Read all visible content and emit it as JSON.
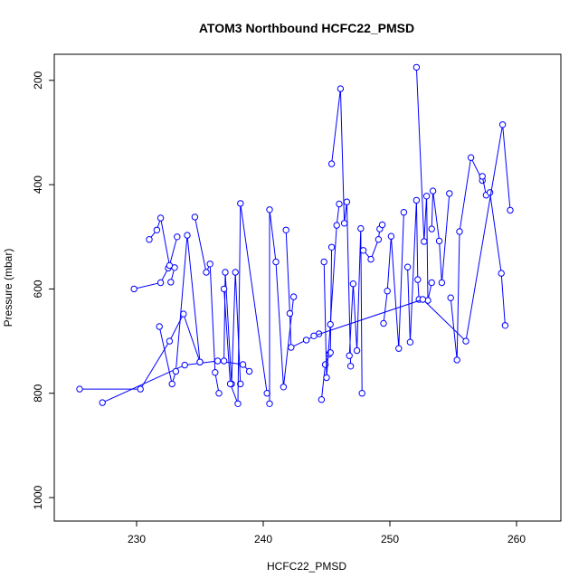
{
  "chart_data": {
    "type": "scatter",
    "title": "ATOM3 Northbound HCFC22_PMSD",
    "xlabel": "HCFC22_PMSD",
    "ylabel": "Pressure (mbar)",
    "xlim": [
      223.5,
      263.5
    ],
    "ylim": [
      1045,
      150
    ],
    "y_reversed": true,
    "x_ticks": [
      230,
      240,
      250,
      260
    ],
    "y_ticks": [
      200,
      400,
      600,
      800,
      1000
    ],
    "grid": false,
    "legend": "none",
    "colors": {
      "series": "#0000ff",
      "axis": "#000000"
    },
    "series": [
      {
        "x": [
          225.5,
          230.3,
          232.6,
          233.7,
          235.0
        ],
        "y": [
          792,
          792,
          700,
          648,
          740
        ]
      },
      {
        "x": [
          227.3,
          233.8,
          236.4,
          238.4,
          238.9
        ],
        "y": [
          818,
          746,
          738,
          745,
          758
        ]
      },
      {
        "x": [
          229.8,
          231.9,
          232.5,
          233.0,
          232.7
        ],
        "y": [
          600,
          588,
          560,
          559,
          587
        ]
      },
      {
        "x": [
          231.0,
          231.6,
          231.9,
          232.6,
          233.2
        ],
        "y": [
          505,
          487,
          464,
          555,
          500
        ]
      },
      {
        "x": [
          231.8,
          232.8,
          233.1,
          234.0,
          235.0
        ],
        "y": [
          672,
          782,
          758,
          497,
          740
        ]
      },
      {
        "x": [
          234.6,
          235.5,
          235.8,
          236.2,
          236.5
        ],
        "y": [
          462,
          568,
          552,
          760,
          800
        ]
      },
      {
        "x": [
          236.9,
          237.0,
          237.5,
          237.8,
          238.2
        ],
        "y": [
          738,
          568,
          782,
          568,
          782
        ]
      },
      {
        "x": [
          236.9,
          237.4,
          238.0,
          238.2,
          240.3
        ],
        "y": [
          600,
          782,
          820,
          436,
          800
        ]
      },
      {
        "x": [
          240.5,
          240.5,
          241.0,
          241.6,
          242.4
        ],
        "y": [
          820,
          448,
          548,
          788,
          615
        ]
      },
      {
        "x": [
          241.8,
          242.1,
          242.2,
          243.4,
          244.4
        ],
        "y": [
          487,
          647,
          712,
          698,
          686
        ]
      },
      {
        "x": [
          244.6,
          244.9,
          245.2,
          245.3,
          245.4
        ],
        "y": [
          812,
          745,
          725,
          722,
          520
        ]
      },
      {
        "x": [
          244.8,
          245.0,
          245.3,
          245.8,
          246.0
        ],
        "y": [
          548,
          770,
          668,
          478,
          437
        ]
      },
      {
        "x": [
          245.4,
          246.1,
          246.4,
          246.6,
          246.9
        ],
        "y": [
          360,
          216,
          474,
          433,
          748
        ]
      },
      {
        "x": [
          246.8,
          247.1,
          247.4,
          247.7,
          247.8
        ],
        "y": [
          728,
          590,
          718,
          484,
          800
        ]
      },
      {
        "x": [
          247.9,
          248.5,
          249.1,
          249.2,
          249.4
        ],
        "y": [
          526,
          543,
          505,
          485,
          477
        ]
      },
      {
        "x": [
          249.5,
          249.8,
          250.1,
          250.7,
          251.1
        ],
        "y": [
          666,
          604,
          499,
          714,
          453
        ]
      },
      {
        "x": [
          251.4,
          251.6,
          252.1,
          252.2,
          252.3
        ],
        "y": [
          558,
          702,
          430,
          582,
          620
        ]
      },
      {
        "x": [
          252.1,
          252.7,
          252.9,
          253.0,
          253.3
        ],
        "y": [
          175,
          509,
          422,
          622,
          588
        ]
      },
      {
        "x": [
          253.3,
          253.4,
          253.9,
          254.1,
          254.7
        ],
        "y": [
          485,
          412,
          508,
          588,
          417
        ]
      },
      {
        "x": [
          254.8,
          255.3,
          255.5,
          256.4,
          257.3
        ],
        "y": [
          617,
          736,
          490,
          348,
          392
        ]
      },
      {
        "x": [
          257.3,
          257.6,
          257.9,
          258.8,
          259.1
        ],
        "y": [
          384,
          420,
          415,
          570,
          670
        ]
      },
      {
        "x": [
          259.5,
          258.9,
          256.0,
          252.6,
          244.0
        ],
        "y": [
          449,
          285,
          700,
          620,
          690
        ]
      }
    ]
  }
}
